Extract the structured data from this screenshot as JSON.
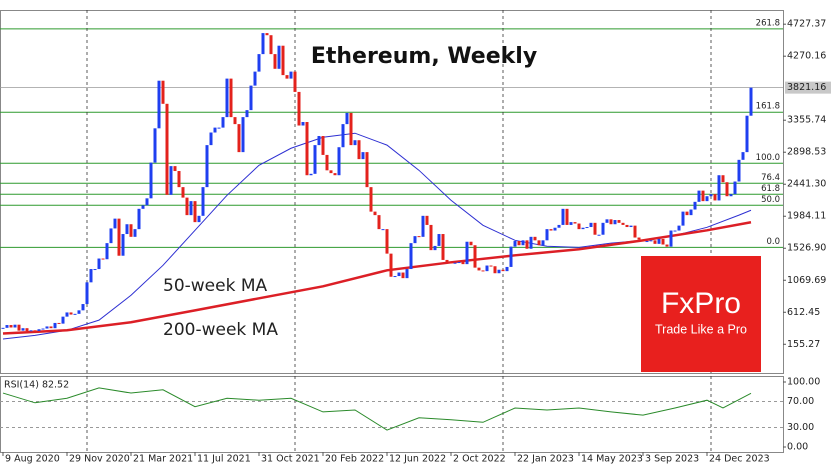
{
  "chart_data": {
    "type": "candlestick",
    "title": "Ethereum, Weekly",
    "ylim": [
      -255,
      4930
    ],
    "xlim": [
      -0.75,
      195
    ],
    "yticks": [
      4727.37,
      4270.16,
      3355.74,
      2898.53,
      {
        "value": 2441.3,
        "label": "2441.30"
      },
      1984.11,
      {
        "value": 1526.9,
        "label": "1526.90"
      },
      1069.69,
      612.45,
      155.27
    ],
    "xticks": [
      {
        "value": 0,
        "label": "9 Aug 2020"
      },
      {
        "value": 16,
        "label": "29 Nov 2020"
      },
      {
        "value": 32,
        "label": "21 Mar 2021"
      },
      {
        "value": 48,
        "label": "11 Jul 2021"
      },
      {
        "value": 64,
        "label": "31 Oct 2021"
      },
      {
        "value": 80,
        "label": "20 Feb 2022"
      },
      {
        "value": 96,
        "label": "12 Jun 2022"
      },
      {
        "value": 112,
        "label": "2 Oct 2022"
      },
      {
        "value": 128,
        "label": "22 Jan 2023"
      },
      {
        "value": 144,
        "label": "14 May 2023"
      },
      {
        "value": 160,
        "label": "3 Sep 2023"
      },
      {
        "value": 176,
        "label": "24 Dec 2023"
      }
    ],
    "separators": [
      21,
      73,
      125,
      177
    ],
    "up_color": "#1f3ff0",
    "down_color": "#e3221c",
    "values": [
      390,
      430,
      395,
      435,
      350,
      385,
      345,
      355,
      345,
      370,
      380,
      410,
      385,
      460,
      450,
      550,
      610,
      580,
      590,
      640,
      730,
      1040,
      1230,
      1230,
      1380,
      1370,
      1600,
      1810,
      1950,
      1420,
      1730,
      1870,
      1690,
      1800,
      2090,
      2140,
      2240,
      2750,
      3240,
      3920,
      3590,
      2290,
      2700,
      2630,
      2400,
      2250,
      2000,
      2200,
      1900,
      1990,
      2400,
      3000,
      3180,
      3250,
      3250,
      3400,
      3950,
      3400,
      3300,
      2900,
      3400,
      3500,
      3850,
      4050,
      4300,
      4600,
      4570,
      4300,
      4090,
      4420,
      4000,
      3950,
      4050,
      3760,
      3280,
      3330,
      2570,
      2590,
      3000,
      3130,
      2860,
      2640,
      2600,
      2570,
      2970,
      3300,
      3460,
      3000,
      3070,
      2800,
      2900,
      2400,
      2050,
      2000,
      1800,
      1800,
      1450,
      1120,
      1130,
      1180,
      1100,
      1230,
      1600,
      1700,
      1690,
      1990,
      1860,
      1500,
      1560,
      1730,
      1360,
      1330,
      1310,
      1320,
      1330,
      1300,
      1620,
      1570,
      1250,
      1210,
      1200,
      1280,
      1270,
      1170,
      1220,
      1200,
      1260,
      1550,
      1630,
      1570,
      1640,
      1520,
      1690,
      1640,
      1570,
      1640,
      1800,
      1780,
      1820,
      1860,
      2090,
      1860,
      1900,
      1880,
      1800,
      1820,
      1830,
      1890,
      1720,
      1720,
      1890,
      1940,
      1870,
      1930,
      1890,
      1860,
      1830,
      1850,
      1680,
      1650,
      1630,
      1630,
      1640,
      1590,
      1660,
      1580,
      1550,
      1780,
      1780,
      1850,
      2050,
      2000,
      2080,
      2190,
      2350,
      2200,
      2270,
      2300,
      2210,
      2570,
      2470,
      2270,
      2300,
      2480,
      2790,
      2900,
      3420,
      3821.16
    ],
    "last_price": 3821.16,
    "series": [
      {
        "name": "50-week MA",
        "color": "#2d2fd2",
        "x": [
          0,
          8,
          16,
          24,
          32,
          40,
          48,
          56,
          64,
          72,
          80,
          88,
          96,
          104,
          112,
          120,
          128,
          136,
          144,
          152,
          160,
          168,
          176,
          184,
          187
        ],
        "values": [
          230,
          282,
          355,
          500,
          855,
          1283,
          1783,
          2283,
          2712,
          2955,
          3112,
          3170,
          3000,
          2640,
          2212,
          1855,
          1640,
          1555,
          1540,
          1600,
          1640,
          1710,
          1826,
          2000,
          2070
        ]
      },
      {
        "name": "200-week MA",
        "color": "#dc1f26",
        "x": [
          0,
          16,
          32,
          48,
          64,
          80,
          96,
          112,
          128,
          144,
          160,
          176,
          187
        ],
        "values": [
          310,
          355,
          470,
          640,
          812,
          983,
          1212,
          1326,
          1426,
          1512,
          1640,
          1783,
          1898
        ]
      }
    ],
    "fib_levels": [
      {
        "value": 4660,
        "label": "261.8"
      },
      {
        "value": 3470,
        "label": "161.8"
      },
      {
        "value": 2741,
        "label": "100.0"
      },
      {
        "value": 2455,
        "label": "76.4"
      },
      {
        "value": 2298,
        "label": "61.8"
      },
      {
        "value": 2141,
        "label": "50.0"
      },
      {
        "value": 1540,
        "label": "0.0"
      }
    ],
    "fib_color": "#2f9a2f",
    "rsi": {
      "label": "RSI(14) 82.52",
      "color": "#2a8a2a",
      "ylim": [
        -7.7,
        107.7
      ],
      "yticks": [
        {
          "value": 100,
          "label": "100.00"
        },
        {
          "value": 70,
          "label": "70.00"
        },
        {
          "value": 30,
          "label": "30.00"
        },
        {
          "value": 0,
          "label": "0.00"
        }
      ],
      "x": [
        0,
        8,
        16,
        24,
        32,
        40,
        48,
        56,
        64,
        72,
        80,
        88,
        96,
        104,
        112,
        120,
        128,
        136,
        144,
        152,
        160,
        168,
        176,
        180,
        187
      ],
      "values": [
        83,
        68,
        75,
        91,
        83,
        88,
        62,
        75,
        72,
        75,
        54,
        57,
        26,
        45,
        42,
        38,
        60,
        57,
        60,
        54,
        49,
        60,
        72,
        60,
        82.52
      ]
    }
  },
  "logo": {
    "brand": "FxPro",
    "slogan": "Trade Like a Pro"
  }
}
